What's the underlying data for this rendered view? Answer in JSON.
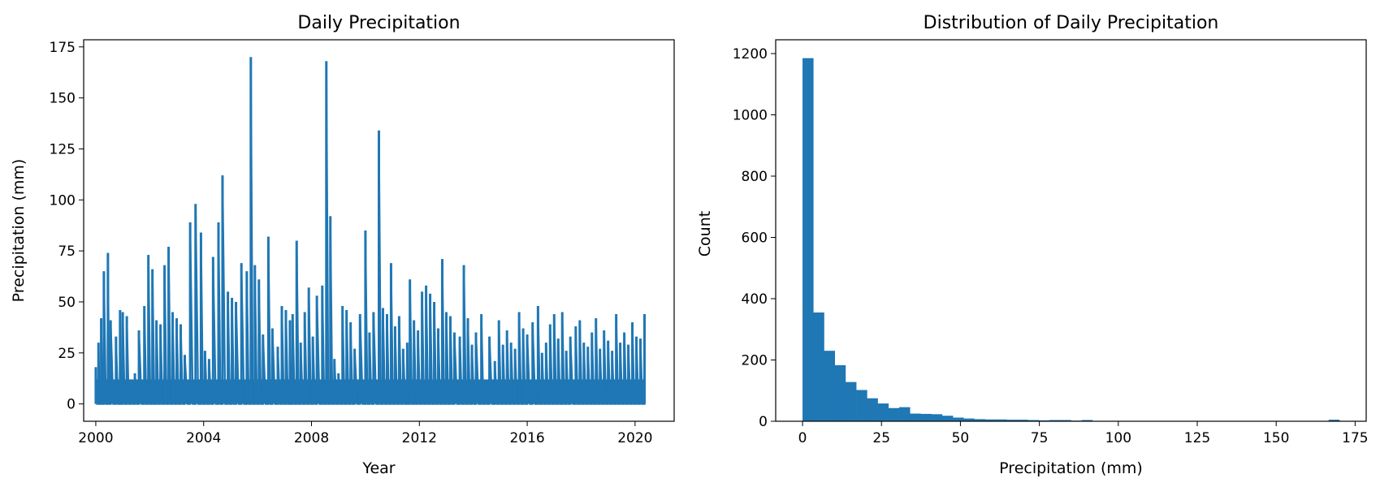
{
  "chart_data": [
    {
      "type": "line",
      "title": "Daily Precipitation",
      "xlabel": "Year",
      "ylabel": "Precipitation (mm)",
      "xlim": [
        1999.55,
        2021.45
      ],
      "ylim": [
        -8.5,
        178.5
      ],
      "xticks": [
        2000,
        2004,
        2008,
        2012,
        2016,
        2020
      ],
      "xtick_labels": [
        "2000",
        "2004",
        "2008",
        "2012",
        "2016",
        "2020"
      ],
      "yticks": [
        0,
        25,
        50,
        75,
        100,
        125,
        150,
        175
      ],
      "ytick_labels": [
        "0",
        "25",
        "50",
        "75",
        "100",
        "125",
        "150",
        "175"
      ],
      "color": "#1f77b4",
      "grid": false,
      "series": [
        {
          "x": [
            2000.0,
            2000.1,
            2000.2,
            2000.3,
            2000.45,
            2000.55,
            2000.75,
            2000.9,
            2001.0,
            2001.15,
            2001.3,
            2001.45,
            2001.6,
            2001.8,
            2001.95,
            2002.1,
            2002.25,
            2002.4,
            2002.55,
            2002.7,
            2002.85,
            2003.0,
            2003.15,
            2003.3,
            2003.5,
            2003.7,
            2003.9,
            2004.05,
            2004.2,
            2004.35,
            2004.55,
            2004.7,
            2004.9,
            2005.05,
            2005.2,
            2005.4,
            2005.6,
            2005.75,
            2005.9,
            2006.05,
            2006.2,
            2006.4,
            2006.55,
            2006.75,
            2006.9,
            2007.05,
            2007.2,
            2007.3,
            2007.45,
            2007.6,
            2007.75,
            2007.9,
            2008.05,
            2008.2,
            2008.4,
            2008.55,
            2008.7,
            2008.85,
            2009.0,
            2009.15,
            2009.3,
            2009.45,
            2009.6,
            2009.8,
            2010.0,
            2010.15,
            2010.3,
            2010.5,
            2010.65,
            2010.8,
            2010.95,
            2011.1,
            2011.25,
            2011.4,
            2011.55,
            2011.65,
            2011.8,
            2011.95,
            2012.1,
            2012.25,
            2012.4,
            2012.55,
            2012.7,
            2012.85,
            2013.0,
            2013.15,
            2013.3,
            2013.5,
            2013.65,
            2013.8,
            2013.95,
            2014.1,
            2014.3,
            2014.45,
            2014.6,
            2014.8,
            2014.95,
            2015.1,
            2015.25,
            2015.4,
            2015.55,
            2015.7,
            2015.85,
            2016.0,
            2016.2,
            2016.4,
            2016.55,
            2016.7,
            2016.85,
            2017.0,
            2017.15,
            2017.3,
            2017.45,
            2017.6,
            2017.8,
            2017.95,
            2018.1,
            2018.25,
            2018.4,
            2018.55,
            2018.7,
            2018.85,
            2019.0,
            2019.15,
            2019.3,
            2019.45,
            2019.6,
            2019.75,
            2019.9,
            2020.05,
            2020.2,
            2020.35
          ],
          "y": [
            18,
            30,
            42,
            65,
            74,
            41,
            33,
            46,
            45,
            43,
            12,
            15,
            36,
            48,
            73,
            66,
            41,
            39,
            68,
            77,
            45,
            42,
            39,
            24,
            89,
            98,
            84,
            26,
            22,
            72,
            89,
            112,
            55,
            52,
            50,
            69,
            65,
            170,
            68,
            61,
            34,
            82,
            37,
            28,
            48,
            46,
            41,
            44,
            80,
            30,
            45,
            57,
            33,
            53,
            58,
            168,
            92,
            22,
            15,
            48,
            46,
            40,
            27,
            44,
            85,
            35,
            45,
            134,
            47,
            44,
            69,
            38,
            43,
            27,
            30,
            61,
            41,
            36,
            55,
            58,
            54,
            50,
            37,
            71,
            45,
            43,
            35,
            33,
            68,
            42,
            29,
            35,
            44,
            10,
            33,
            21,
            41,
            29,
            36,
            30,
            27,
            45,
            37,
            34,
            40,
            48,
            25,
            30,
            39,
            44,
            32,
            45,
            26,
            33,
            38,
            41,
            30,
            28,
            35,
            42,
            27,
            36,
            31,
            26,
            44,
            30,
            35,
            29,
            40,
            33,
            32,
            44
          ]
        }
      ]
    },
    {
      "type": "bar",
      "title": "Distribution of Daily Precipitation",
      "xlabel": "Precipitation (mm)",
      "ylabel": "Count",
      "xlim": [
        -8.5,
        178.5
      ],
      "ylim": [
        0,
        1245
      ],
      "xticks": [
        0,
        25,
        50,
        75,
        100,
        125,
        150,
        175
      ],
      "xtick_labels": [
        "0",
        "25",
        "50",
        "75",
        "100",
        "125",
        "150",
        "175"
      ],
      "yticks": [
        0,
        200,
        400,
        600,
        800,
        1000,
        1200
      ],
      "ytick_labels": [
        "0",
        "200",
        "400",
        "600",
        "800",
        "1000",
        "1200"
      ],
      "color": "#1f77b4",
      "grid": false,
      "bin_width": 3.4,
      "bin_starts": [
        0,
        3.4,
        6.8,
        10.2,
        13.6,
        17.0,
        20.4,
        23.8,
        27.2,
        30.6,
        34.0,
        37.4,
        40.8,
        44.2,
        47.6,
        51.0,
        54.4,
        57.8,
        61.2,
        64.6,
        68.0,
        71.4,
        74.8,
        78.2,
        81.6,
        85.0,
        88.4,
        91.8,
        166.6
      ],
      "values": [
        1185,
        355,
        230,
        183,
        128,
        102,
        75,
        58,
        43,
        46,
        25,
        24,
        23,
        18,
        12,
        9,
        7,
        6,
        6,
        5,
        5,
        4,
        3,
        4,
        4,
        2,
        4,
        1,
        5
      ]
    }
  ]
}
